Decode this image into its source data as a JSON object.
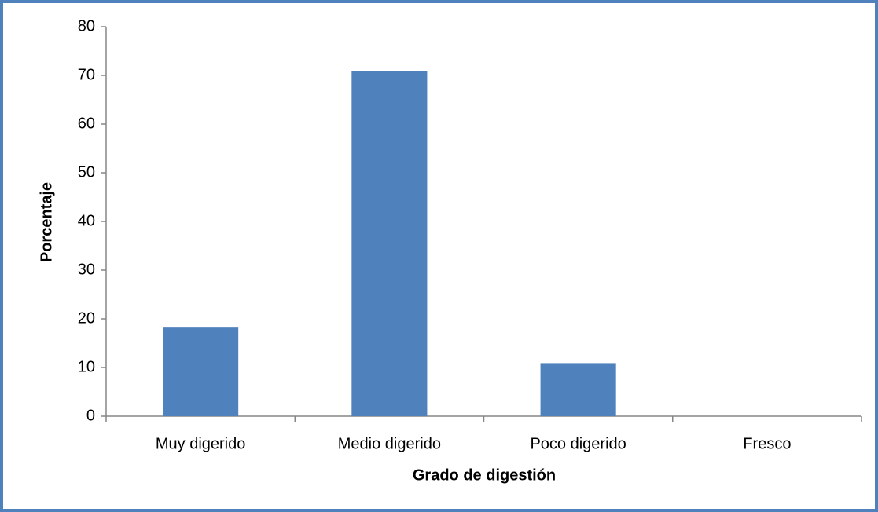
{
  "chart_data": {
    "type": "bar",
    "categories": [
      "Muy digerido",
      "Medio digerido",
      "Poco digerido",
      "Fresco"
    ],
    "values": [
      18.2,
      70.9,
      10.9,
      0
    ],
    "color": "#4f81bd",
    "xlabel": "Grado de digestión",
    "ylabel": "Porcentaje",
    "ylim": [
      0,
      80
    ],
    "yticks": [
      0,
      10,
      20,
      30,
      40,
      50,
      60,
      70,
      80
    ],
    "grid": false
  }
}
